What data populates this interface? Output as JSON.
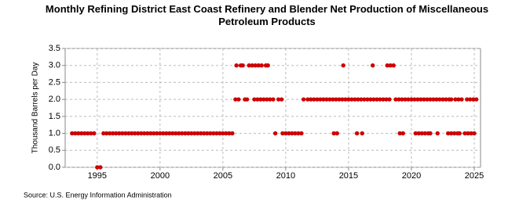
{
  "chart_data": {
    "type": "scatter",
    "title": "Monthly Refining District East Coast Refinery and Blender Net Production of Miscellaneous Petroleum Products",
    "y_label": "Thousand Barrels per Day",
    "source": "Source: U.S. Energy Information Administration",
    "xlim": [
      1992.45,
      2025.5
    ],
    "xticks": [
      1995,
      2000,
      2005,
      2010,
      2015,
      2020,
      2025
    ],
    "ylim": [
      0,
      3.5
    ],
    "yticks": [
      {
        "value": 0,
        "label": "0.0"
      },
      {
        "value": 0.5,
        "label": "0.5"
      },
      {
        "value": 1,
        "label": "1.0"
      },
      {
        "value": 1.5,
        "label": "1.5"
      },
      {
        "value": 2,
        "label": "2.0"
      },
      {
        "value": 2.5,
        "label": "2.5"
      },
      {
        "value": 3,
        "label": "3.0"
      },
      {
        "value": 3.5,
        "label": "3.5"
      }
    ],
    "grid": true,
    "color": "#cc0000",
    "x": [
      1993,
      1993.25,
      1993.5,
      1993.75,
      1994,
      1994.25,
      1994.5,
      1994.75,
      1995,
      1995.25,
      1995.5,
      1995.75,
      1996,
      1996.25,
      1996.5,
      1996.75,
      1997,
      1997.25,
      1997.5,
      1997.75,
      1998,
      1998.25,
      1998.5,
      1998.75,
      1999,
      1999.25,
      1999.5,
      1999.75,
      2000,
      2000.25,
      2000.5,
      2000.75,
      2001,
      2001.25,
      2001.5,
      2001.75,
      2002,
      2002.25,
      2002.5,
      2002.75,
      2003,
      2003.25,
      2003.5,
      2003.75,
      2004,
      2004.25,
      2004.5,
      2004.75,
      2005,
      2005.25,
      2005.5,
      2005.75,
      2006,
      2006.08,
      2006.25,
      2006.42,
      2006.58,
      2006.75,
      2006.92,
      2007.08,
      2007.33,
      2007.5,
      2007.58,
      2007.75,
      2007.83,
      2008,
      2008.08,
      2008.25,
      2008.42,
      2008.5,
      2008.58,
      2008.75,
      2009,
      2009.17,
      2009.42,
      2009.67,
      2009.75,
      2010,
      2010.25,
      2010.5,
      2010.75,
      2011,
      2011.25,
      2011.42,
      2011.75,
      2012,
      2012.25,
      2012.5,
      2012.75,
      2013,
      2013.25,
      2013.5,
      2013.75,
      2014,
      2014.25,
      2014.5,
      2014.75,
      2015,
      2015.25,
      2015.5,
      2015.75,
      2016,
      2016.25,
      2016.5,
      2016.75,
      2017,
      2017.25,
      2017.5,
      2017.75,
      2018,
      2018.25,
      2013.83,
      2014.08,
      2014.58,
      2015.67,
      2016.08,
      2016.92,
      2018.08,
      2018.33,
      2018.58,
      2018.75,
      2019,
      2019.25,
      2019.5,
      2019.75,
      2020,
      2020.25,
      2020.5,
      2020.75,
      2019.08,
      2019.33,
      2020.33,
      2020.58,
      2020.83,
      2021.08,
      2021.33,
      2021.5,
      2021,
      2021.25,
      2021.5,
      2021.75,
      2022,
      2022.25,
      2022.5,
      2022.75,
      2023,
      2023.17,
      2022.08,
      2022.92,
      2023.17,
      2023.42,
      2023.67,
      2023.83,
      2023.5,
      2023.75,
      2024,
      2024.25,
      2024.5,
      2024.75,
      2025,
      2024.42,
      2024.67,
      2024.92,
      2025.17
    ],
    "values": [
      1,
      1,
      1,
      1,
      1,
      1,
      1,
      1,
      0,
      0,
      1,
      1,
      1,
      1,
      1,
      1,
      1,
      1,
      1,
      1,
      1,
      1,
      1,
      1,
      1,
      1,
      1,
      1,
      1,
      1,
      1,
      1,
      1,
      1,
      1,
      1,
      1,
      1,
      1,
      1,
      1,
      1,
      1,
      1,
      1,
      1,
      1,
      1,
      1,
      1,
      1,
      1,
      2,
      3,
      2,
      3,
      3,
      2,
      2,
      3,
      3,
      2,
      3,
      2,
      3,
      2,
      3,
      2,
      3,
      2,
      3,
      2,
      2,
      1,
      2,
      2,
      1,
      1,
      1,
      1,
      1,
      1,
      1,
      2,
      2,
      2,
      2,
      2,
      2,
      2,
      2,
      2,
      2,
      2,
      2,
      2,
      2,
      2,
      2,
      2,
      2,
      2,
      2,
      2,
      2,
      2,
      2,
      2,
      2,
      2,
      2,
      1,
      1,
      3,
      1,
      1,
      3,
      3,
      3,
      3,
      2,
      2,
      2,
      2,
      2,
      2,
      2,
      2,
      2,
      1,
      1,
      1,
      1,
      1,
      1,
      1,
      1,
      2,
      2,
      2,
      2,
      2,
      2,
      2,
      2,
      2,
      2,
      1,
      1,
      1,
      1,
      1,
      1,
      2,
      2,
      2,
      1,
      1,
      1,
      1,
      2,
      2,
      2,
      2
    ]
  }
}
